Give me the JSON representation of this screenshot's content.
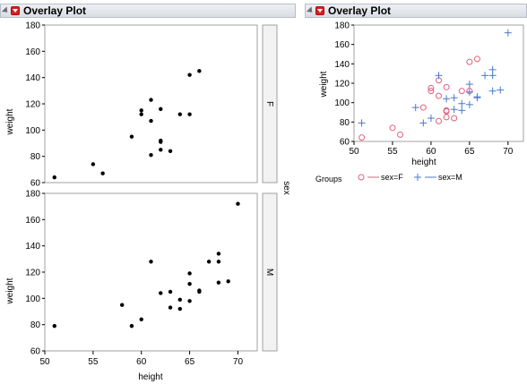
{
  "left": {
    "title": "Overlay Plot",
    "xlabel": "height",
    "ylabel": "weight",
    "group_label": "sex",
    "panel_labels": [
      "F",
      "M"
    ]
  },
  "right": {
    "title": "Overlay Plot",
    "xlabel": "height",
    "ylabel": "weight",
    "legend_title": "Groups",
    "legend_items": [
      "sex=F",
      "sex=M"
    ]
  },
  "colors": {
    "female": "#e0607a",
    "male": "#4a78d0",
    "frame": "#a0a0a0"
  },
  "chart_data": [
    {
      "type": "scatter",
      "title": "",
      "xlabel": "height",
      "ylabel": "weight",
      "facet": "sex",
      "xlim": [
        50,
        72
      ],
      "xticks": [
        50,
        55,
        60,
        65,
        70
      ],
      "panels": [
        {
          "name": "F",
          "ylim": [
            60,
            180
          ],
          "yticks": [
            60,
            80,
            100,
            120,
            140,
            160,
            180
          ],
          "points": [
            [
              51,
              64
            ],
            [
              55,
              74
            ],
            [
              56,
              67
            ],
            [
              59,
              95
            ],
            [
              60,
              112
            ],
            [
              60,
              115
            ],
            [
              61,
              81
            ],
            [
              61,
              107
            ],
            [
              61,
              123
            ],
            [
              62,
              85
            ],
            [
              62,
              91
            ],
            [
              62,
              92
            ],
            [
              62,
              116
            ],
            [
              63,
              84
            ],
            [
              64,
              112
            ],
            [
              65,
              112
            ],
            [
              65,
              142
            ],
            [
              66,
              145
            ]
          ]
        },
        {
          "name": "M",
          "ylim": [
            60,
            180
          ],
          "yticks": [
            60,
            80,
            100,
            120,
            140,
            160,
            180
          ],
          "points": [
            [
              51,
              79
            ],
            [
              58,
              95
            ],
            [
              59,
              79
            ],
            [
              60,
              84
            ],
            [
              61,
              128
            ],
            [
              62,
              104
            ],
            [
              63,
              93
            ],
            [
              63,
              105
            ],
            [
              64,
              92
            ],
            [
              64,
              99
            ],
            [
              65,
              98
            ],
            [
              65,
              111
            ],
            [
              65,
              119
            ],
            [
              66,
              105
            ],
            [
              66,
              106
            ],
            [
              67,
              128
            ],
            [
              68,
              112
            ],
            [
              68,
              128
            ],
            [
              68,
              134
            ],
            [
              69,
              113
            ],
            [
              70,
              172
            ]
          ]
        }
      ]
    },
    {
      "type": "scatter",
      "title": "",
      "xlabel": "height",
      "ylabel": "weight",
      "xlim": [
        50,
        72
      ],
      "xticks": [
        50,
        55,
        60,
        65,
        70
      ],
      "ylim": [
        60,
        180
      ],
      "yticks": [
        60,
        80,
        100,
        120,
        140,
        160,
        180
      ],
      "legend": "bottom",
      "series": [
        {
          "name": "sex=F",
          "marker": "circle",
          "points": [
            [
              51,
              64
            ],
            [
              55,
              74
            ],
            [
              56,
              67
            ],
            [
              59,
              95
            ],
            [
              60,
              112
            ],
            [
              60,
              115
            ],
            [
              61,
              81
            ],
            [
              61,
              107
            ],
            [
              61,
              123
            ],
            [
              62,
              85
            ],
            [
              62,
              91
            ],
            [
              62,
              92
            ],
            [
              62,
              116
            ],
            [
              63,
              84
            ],
            [
              64,
              112
            ],
            [
              65,
              112
            ],
            [
              65,
              142
            ],
            [
              66,
              145
            ]
          ]
        },
        {
          "name": "sex=M",
          "marker": "plus",
          "points": [
            [
              51,
              79
            ],
            [
              58,
              95
            ],
            [
              59,
              79
            ],
            [
              60,
              84
            ],
            [
              61,
              128
            ],
            [
              62,
              104
            ],
            [
              63,
              93
            ],
            [
              63,
              105
            ],
            [
              64,
              92
            ],
            [
              64,
              99
            ],
            [
              65,
              98
            ],
            [
              65,
              111
            ],
            [
              65,
              119
            ],
            [
              66,
              105
            ],
            [
              66,
              106
            ],
            [
              67,
              128
            ],
            [
              68,
              112
            ],
            [
              68,
              128
            ],
            [
              68,
              134
            ],
            [
              69,
              113
            ],
            [
              70,
              172
            ]
          ]
        }
      ]
    }
  ]
}
